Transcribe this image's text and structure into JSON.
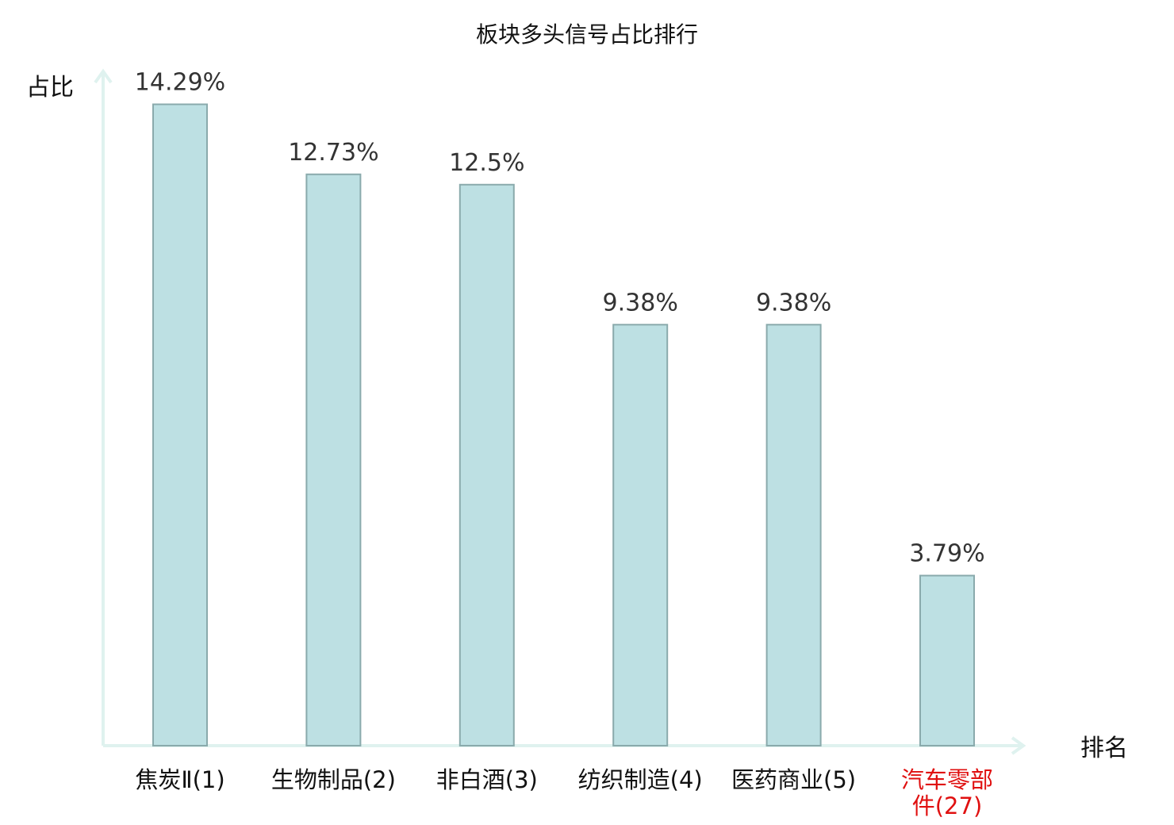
{
  "chart_data": {
    "type": "bar",
    "title": "板块多头信号占比排行",
    "xlabel": "排名",
    "ylabel": "占比",
    "categories": [
      [
        "焦炭Ⅱ(1)"
      ],
      [
        "生物制品(2)"
      ],
      [
        "非白酒(3)"
      ],
      [
        "纺织制造(4)"
      ],
      [
        "医药商业(5)"
      ],
      [
        "汽车零部",
        "件(27)"
      ]
    ],
    "values": [
      14.29,
      12.73,
      12.5,
      9.38,
      9.38,
      3.79
    ],
    "value_labels": [
      "14.29%",
      "12.73%",
      "12.5%",
      "9.38%",
      "9.38%",
      "3.79%"
    ],
    "highlight_index": 5,
    "ylim": [
      0,
      15
    ],
    "grid": false,
    "legend": "none",
    "colors": {
      "bar_fill": "#bde0e3",
      "bar_stroke": "#8aaaac",
      "axis": "#dff2ef",
      "highlight_text": "#e01010",
      "text": "#111111",
      "value_text": "#333333"
    }
  }
}
